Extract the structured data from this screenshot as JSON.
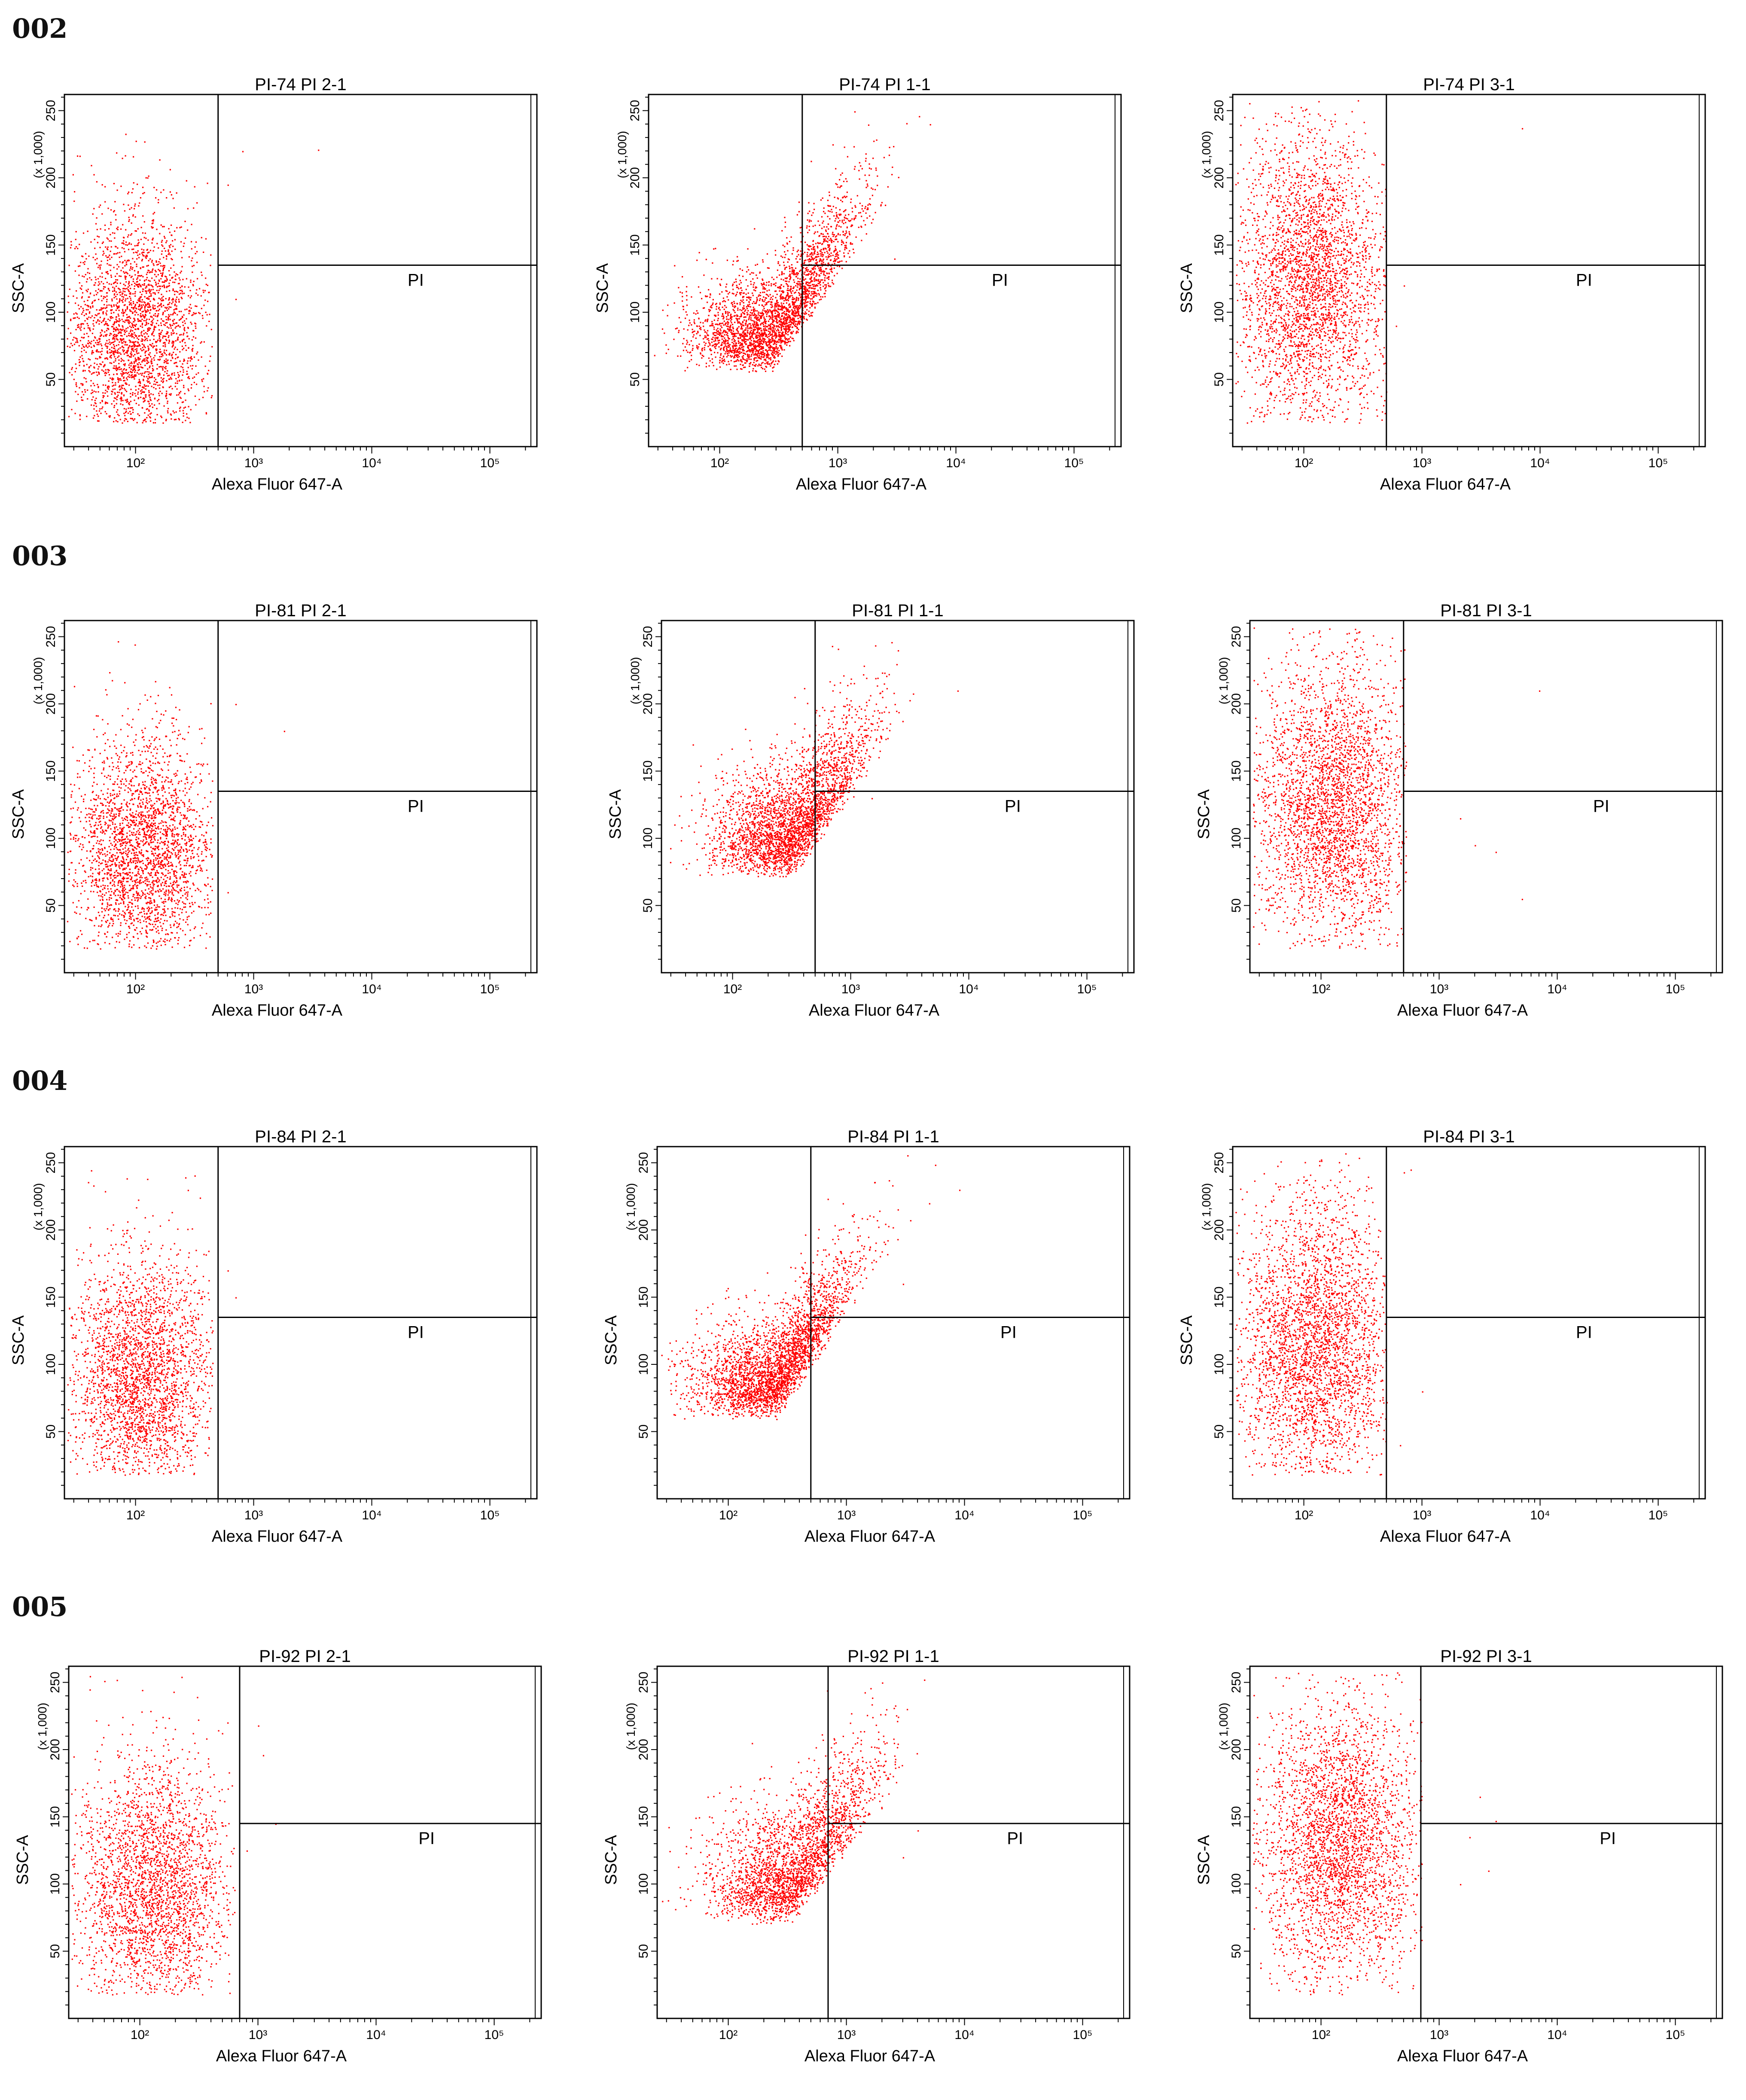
{
  "colors": {
    "dots": "#ff0000",
    "axes": "#000000",
    "background": "#ffffff",
    "row_label": "#111111"
  },
  "rows": [
    {
      "label": "002"
    },
    {
      "label": "003"
    },
    {
      "label": "004"
    },
    {
      "label": "005"
    }
  ],
  "chart_data": [
    {
      "type": "scatter",
      "row": "002",
      "title": "PI-74 PI 2-1",
      "xlabel": "Alexa Fluor 647-A",
      "ylabel": "SSC-A",
      "yunit": "(x 1,000)",
      "xscale": "log",
      "xlim": [
        25,
        250000
      ],
      "ylim": [
        0,
        262
      ],
      "xticks": [
        "10²",
        "10³",
        "10⁴",
        "10⁵"
      ],
      "yticks": [
        50,
        100,
        150,
        200,
        250
      ],
      "gate": {
        "x": 500,
        "y": 135,
        "label": "PI"
      },
      "pattern": "negative",
      "population": {
        "cx_log": 2.0,
        "x_spread": 0.3,
        "x_max_log": 2.65,
        "cy": 85,
        "y_spread": 45,
        "tilt": 0,
        "count": 2600
      },
      "outliers": [
        [
          800,
          220
        ],
        [
          3500,
          221
        ],
        [
          600,
          195
        ],
        [
          700,
          110
        ]
      ]
    },
    {
      "type": "scatter",
      "row": "002",
      "title": "PI-74 PI 1-1",
      "xlabel": "Alexa Fluor 647-A",
      "ylabel": "SSC-A",
      "yunit": "(x 1,000)",
      "xscale": "log",
      "xlim": [
        25,
        250000
      ],
      "ylim": [
        0,
        262
      ],
      "xticks": [
        "10²",
        "10³",
        "10⁴",
        "10⁵"
      ],
      "yticks": [
        50,
        100,
        150,
        200,
        250
      ],
      "gate": {
        "x": 500,
        "y": 135,
        "label": "PI"
      },
      "pattern": "positive",
      "population": {
        "cx_log": 2.45,
        "x_spread": 0.35,
        "cy": 55,
        "y_spread": 28,
        "tilt": 0.55,
        "count": 3000
      },
      "outliers": [
        [
          6000,
          240
        ],
        [
          3000,
          140
        ],
        [
          2500,
          180
        ],
        [
          900,
          225
        ]
      ]
    },
    {
      "type": "scatter",
      "row": "002",
      "title": "PI-74 PI 3-1",
      "xlabel": "Alexa Fluor 647-A",
      "ylabel": "SSC-A",
      "yunit": "(x 1,000)",
      "xscale": "log",
      "xlim": [
        25,
        250000
      ],
      "ylim": [
        0,
        262
      ],
      "xticks": [
        "10²",
        "10³",
        "10⁴",
        "10⁵"
      ],
      "yticks": [
        50,
        100,
        150,
        200,
        250
      ],
      "gate": {
        "x": 500,
        "y": 135,
        "label": "PI"
      },
      "pattern": "negative",
      "population": {
        "cx_log": 2.05,
        "x_spread": 0.33,
        "x_max_log": 2.7,
        "cy": 125,
        "y_spread": 55,
        "tilt": 0,
        "count": 3000
      },
      "outliers": [
        [
          7000,
          237
        ],
        [
          600,
          90
        ],
        [
          700,
          120
        ]
      ]
    },
    {
      "type": "scatter",
      "row": "003",
      "title": "PI-81 PI 2-1",
      "xlabel": "Alexa Fluor 647-A",
      "ylabel": "SSC-A",
      "yunit": "(x 1,000)",
      "xscale": "log",
      "xlim": [
        25,
        250000
      ],
      "ylim": [
        0,
        262
      ],
      "xticks": [
        "10²",
        "10³",
        "10⁴",
        "10⁵"
      ],
      "yticks": [
        50,
        100,
        150,
        200,
        250
      ],
      "gate": {
        "x": 500,
        "y": 135,
        "label": "PI"
      },
      "pattern": "negative",
      "population": {
        "cx_log": 2.05,
        "x_spread": 0.3,
        "x_max_log": 2.65,
        "cy": 90,
        "y_spread": 42,
        "tilt": 0,
        "count": 2600
      },
      "outliers": [
        [
          1800,
          180
        ],
        [
          600,
          60
        ],
        [
          700,
          200
        ]
      ]
    },
    {
      "type": "scatter",
      "row": "003",
      "title": "PI-81 PI 1-1",
      "xlabel": "Alexa Fluor 647-A",
      "ylabel": "SSC-A",
      "yunit": "(x 1,000)",
      "xscale": "log",
      "xlim": [
        25,
        250000
      ],
      "ylim": [
        0,
        262
      ],
      "xticks": [
        "10²",
        "10³",
        "10⁴",
        "10⁵"
      ],
      "yticks": [
        50,
        100,
        150,
        200,
        250
      ],
      "gate": {
        "x": 500,
        "y": 135,
        "label": "PI"
      },
      "pattern": "positive",
      "population": {
        "cx_log": 2.5,
        "x_spread": 0.33,
        "cy": 70,
        "y_spread": 32,
        "tilt": 0.5,
        "count": 3000
      },
      "outliers": [
        [
          8000,
          210
        ],
        [
          2500,
          240
        ],
        [
          1500,
          130
        ]
      ]
    },
    {
      "type": "scatter",
      "row": "003",
      "title": "PI-81 PI 3-1",
      "xlabel": "Alexa Fluor 647-A",
      "ylabel": "SSC-A",
      "yunit": "(x 1,000)",
      "xscale": "log",
      "xlim": [
        25,
        250000
      ],
      "ylim": [
        0,
        262
      ],
      "xticks": [
        "10²",
        "10³",
        "10⁴",
        "10⁵"
      ],
      "yticks": [
        50,
        100,
        150,
        200,
        250
      ],
      "gate": {
        "x": 500,
        "y": 135,
        "label": "PI"
      },
      "pattern": "negative",
      "population": {
        "cx_log": 2.1,
        "x_spread": 0.33,
        "x_max_log": 2.72,
        "cy": 125,
        "y_spread": 55,
        "tilt": 0,
        "count": 3000
      },
      "outliers": [
        [
          7000,
          210
        ],
        [
          2000,
          95
        ],
        [
          3000,
          90
        ],
        [
          5000,
          55
        ],
        [
          1500,
          115
        ]
      ]
    },
    {
      "type": "scatter",
      "row": "004",
      "title": "PI-84 PI 2-1",
      "xlabel": "Alexa Fluor 647-A",
      "ylabel": "SSC-A",
      "yunit": "(x 1,000)",
      "xscale": "log",
      "xlim": [
        25,
        250000
      ],
      "ylim": [
        0,
        262
      ],
      "xticks": [
        "10²",
        "10³",
        "10⁴",
        "10⁵"
      ],
      "yticks": [
        50,
        100,
        150,
        200,
        250
      ],
      "gate": {
        "x": 500,
        "y": 135,
        "label": "PI"
      },
      "pattern": "negative",
      "population": {
        "cx_log": 2.05,
        "x_spread": 0.3,
        "x_max_log": 2.65,
        "cy": 90,
        "y_spread": 45,
        "tilt": 0,
        "count": 2600
      },
      "outliers": [
        [
          600,
          170
        ],
        [
          700,
          150
        ]
      ]
    },
    {
      "type": "scatter",
      "row": "004",
      "title": "PI-84 PI 1-1",
      "xlabel": "Alexa Fluor 647-A",
      "ylabel": "SSC-A",
      "yunit": "(x 1,000)",
      "xscale": "log",
      "xlim": [
        25,
        250000
      ],
      "ylim": [
        0,
        262
      ],
      "xticks": [
        "10²",
        "10³",
        "10⁴",
        "10⁵"
      ],
      "yticks": [
        50,
        100,
        150,
        200,
        250
      ],
      "gate": {
        "x": 500,
        "y": 135,
        "label": "PI"
      },
      "pattern": "positive",
      "population": {
        "cx_log": 2.4,
        "x_spread": 0.35,
        "cy": 58,
        "y_spread": 28,
        "tilt": 0.55,
        "count": 3000
      },
      "outliers": [
        [
          9000,
          230
        ],
        [
          5000,
          220
        ],
        [
          3000,
          160
        ]
      ]
    },
    {
      "type": "scatter",
      "row": "004",
      "title": "PI-84 PI 3-1",
      "xlabel": "Alexa Fluor 647-A",
      "ylabel": "SSC-A",
      "yunit": "(x 1,000)",
      "xscale": "log",
      "xlim": [
        25,
        250000
      ],
      "ylim": [
        0,
        262
      ],
      "xticks": [
        "10²",
        "10³",
        "10⁴",
        "10⁵"
      ],
      "yticks": [
        50,
        100,
        150,
        200,
        250
      ],
      "gate": {
        "x": 500,
        "y": 135,
        "label": "PI"
      },
      "pattern": "negative",
      "population": {
        "cx_log": 2.1,
        "x_spread": 0.33,
        "x_max_log": 2.7,
        "cy": 115,
        "y_spread": 55,
        "tilt": 0,
        "count": 3000
      },
      "outliers": [
        [
          700,
          243
        ],
        [
          800,
          245
        ],
        [
          1000,
          80
        ],
        [
          650,
          40
        ]
      ]
    },
    {
      "type": "scatter",
      "row": "005",
      "title": "PI-92 PI 2-1",
      "xlabel": "Alexa Fluor 647-A",
      "ylabel": "SSC-A",
      "yunit": "(x 1,000)",
      "xscale": "log",
      "xlim": [
        25,
        250000
      ],
      "ylim": [
        0,
        262
      ],
      "xticks": [
        "10²",
        "10³",
        "10⁴",
        "10⁵"
      ],
      "yticks": [
        50,
        100,
        150,
        200,
        250
      ],
      "gate": {
        "x": 700,
        "y": 145,
        "label": "PI"
      },
      "pattern": "negative",
      "population": {
        "cx_log": 2.1,
        "x_spread": 0.33,
        "x_max_log": 2.8,
        "cy": 95,
        "y_spread": 48,
        "tilt": 0,
        "count": 2600
      },
      "outliers": [
        [
          1000,
          218
        ],
        [
          1100,
          196
        ],
        [
          1400,
          145
        ],
        [
          800,
          125
        ]
      ]
    },
    {
      "type": "scatter",
      "row": "005",
      "title": "PI-92 PI 1-1",
      "xlabel": "Alexa Fluor 647-A",
      "ylabel": "SSC-A",
      "yunit": "(x 1,000)",
      "xscale": "log",
      "xlim": [
        25,
        250000
      ],
      "ylim": [
        0,
        262
      ],
      "xticks": [
        "10²",
        "10³",
        "10⁴",
        "10⁵"
      ],
      "yticks": [
        50,
        100,
        150,
        200,
        250
      ],
      "gate": {
        "x": 700,
        "y": 145,
        "label": "PI"
      },
      "pattern": "positive",
      "population": {
        "cx_log": 2.55,
        "x_spread": 0.35,
        "cy": 70,
        "y_spread": 35,
        "tilt": 0.5,
        "count": 2600
      },
      "outliers": [
        [
          4000,
          140
        ],
        [
          3000,
          120
        ],
        [
          2000,
          250
        ]
      ]
    },
    {
      "type": "scatter",
      "row": "005",
      "title": "PI-92 PI  3-1",
      "xlabel": "Alexa Fluor 647-A",
      "ylabel": "SSC-A",
      "yunit": "(x 1,000)",
      "xscale": "log",
      "xlim": [
        25,
        250000
      ],
      "ylim": [
        0,
        262
      ],
      "xticks": [
        "10²",
        "10³",
        "10⁴",
        "10⁵"
      ],
      "yticks": [
        50,
        100,
        150,
        200,
        250
      ],
      "gate": {
        "x": 700,
        "y": 145,
        "label": "PI"
      },
      "pattern": "negative",
      "population": {
        "cx_log": 2.15,
        "x_spread": 0.34,
        "x_max_log": 2.85,
        "cy": 130,
        "y_spread": 55,
        "tilt": 0,
        "count": 3000
      },
      "outliers": [
        [
          2200,
          165
        ],
        [
          3000,
          147
        ],
        [
          1800,
          135
        ],
        [
          2600,
          110
        ],
        [
          1500,
          100
        ]
      ]
    }
  ]
}
